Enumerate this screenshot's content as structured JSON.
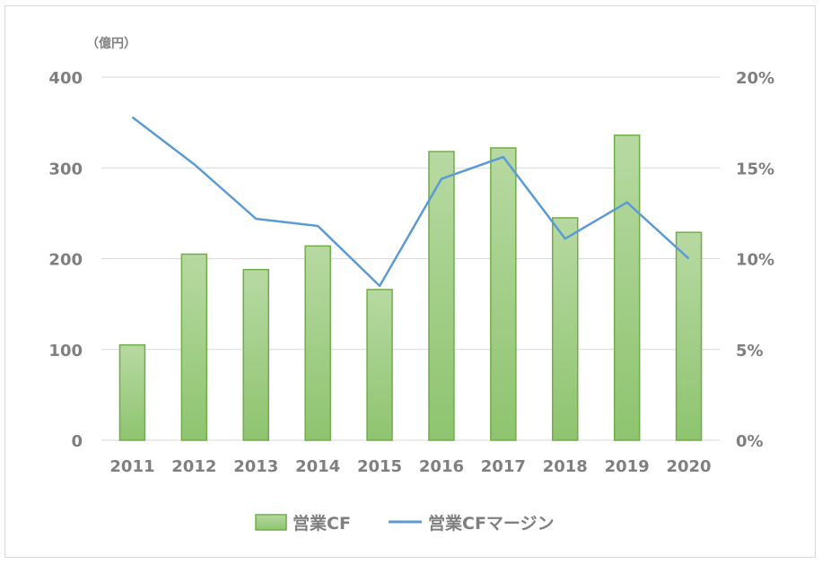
{
  "chart_data": {
    "type": "bar",
    "y_unit_label": "（億円）",
    "categories": [
      "2011",
      "2012",
      "2013",
      "2014",
      "2015",
      "2016",
      "2017",
      "2018",
      "2019",
      "2020"
    ],
    "series": [
      {
        "name": "営業CF",
        "type": "bar",
        "axis": "left",
        "values": [
          105,
          205,
          188,
          214,
          166,
          318,
          322,
          245,
          336,
          229
        ],
        "color": "#a9d18e",
        "edge_color": "#70ad47"
      },
      {
        "name": "営業CFマージン",
        "type": "line",
        "axis": "right",
        "values": [
          17.8,
          15.2,
          12.2,
          11.8,
          8.5,
          14.4,
          15.6,
          11.1,
          13.1,
          10.0
        ],
        "color": "#5b9bd5"
      }
    ],
    "ylim_left": [
      0,
      400
    ],
    "yticks_left": [
      "0",
      "100",
      "200",
      "300",
      "400"
    ],
    "ylim_right": [
      0,
      20
    ],
    "yticks_right": [
      "0%",
      "5%",
      "10%",
      "15%",
      "20%"
    ],
    "grid": true,
    "legend_position": "bottom"
  }
}
